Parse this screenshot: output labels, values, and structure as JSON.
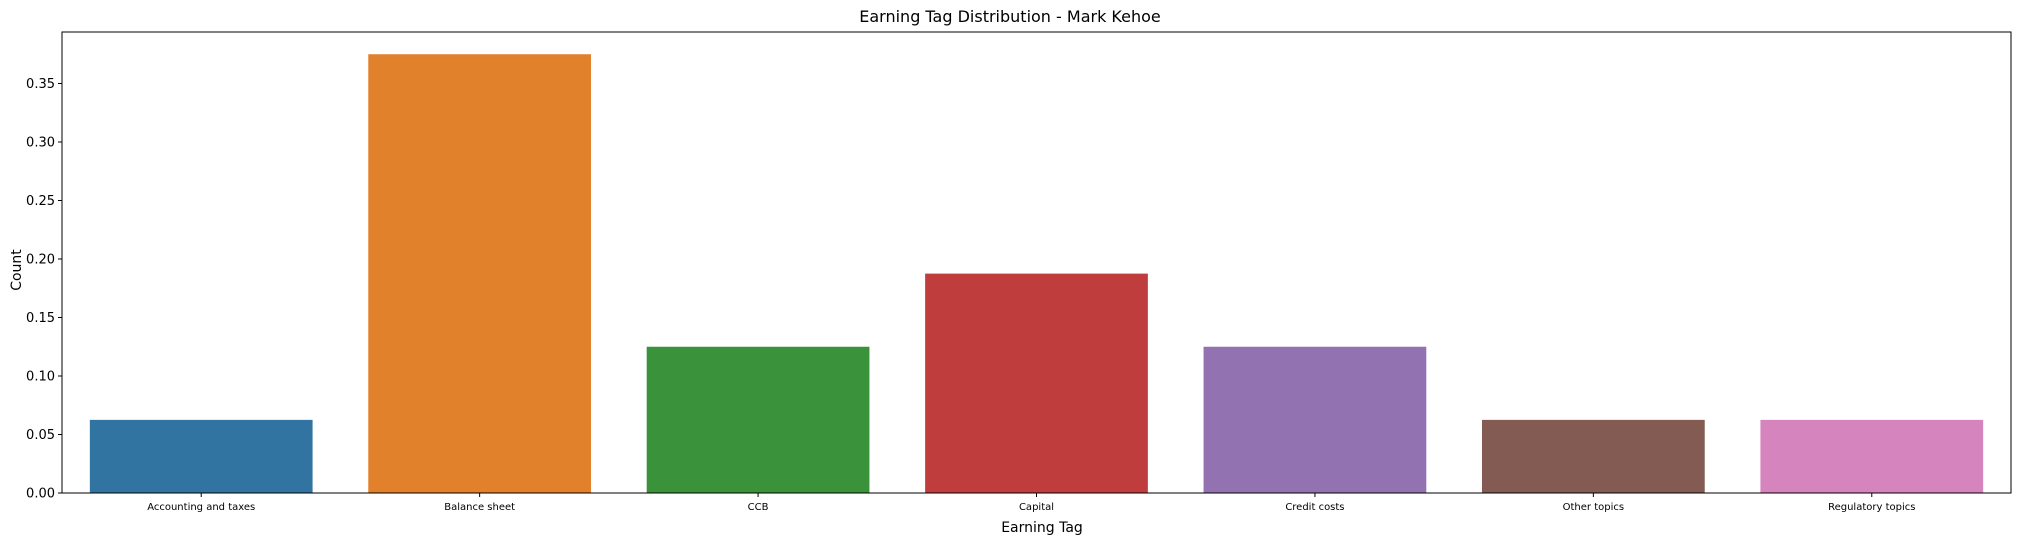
{
  "chart_data": {
    "type": "bar",
    "title": "Earning Tag Distribution - Mark Kehoe",
    "xlabel": "Earning Tag",
    "ylabel": "Count",
    "categories": [
      "Accounting and taxes",
      "Balance sheet",
      "CCB",
      "Capital",
      "Credit costs",
      "Other topics",
      "Regulatory topics"
    ],
    "values": [
      0.0625,
      0.375,
      0.125,
      0.1875,
      0.125,
      0.0625,
      0.0625
    ],
    "colors": [
      "#3274a1",
      "#e1812c",
      "#3a923a",
      "#c03d3e",
      "#9372b2",
      "#845b53",
      "#d684bd"
    ],
    "ylim": [
      0,
      0.394
    ],
    "yticks": [
      "0.00",
      "0.05",
      "0.10",
      "0.15",
      "0.20",
      "0.25",
      "0.30",
      "0.35"
    ],
    "grid": false,
    "legend": "none"
  }
}
